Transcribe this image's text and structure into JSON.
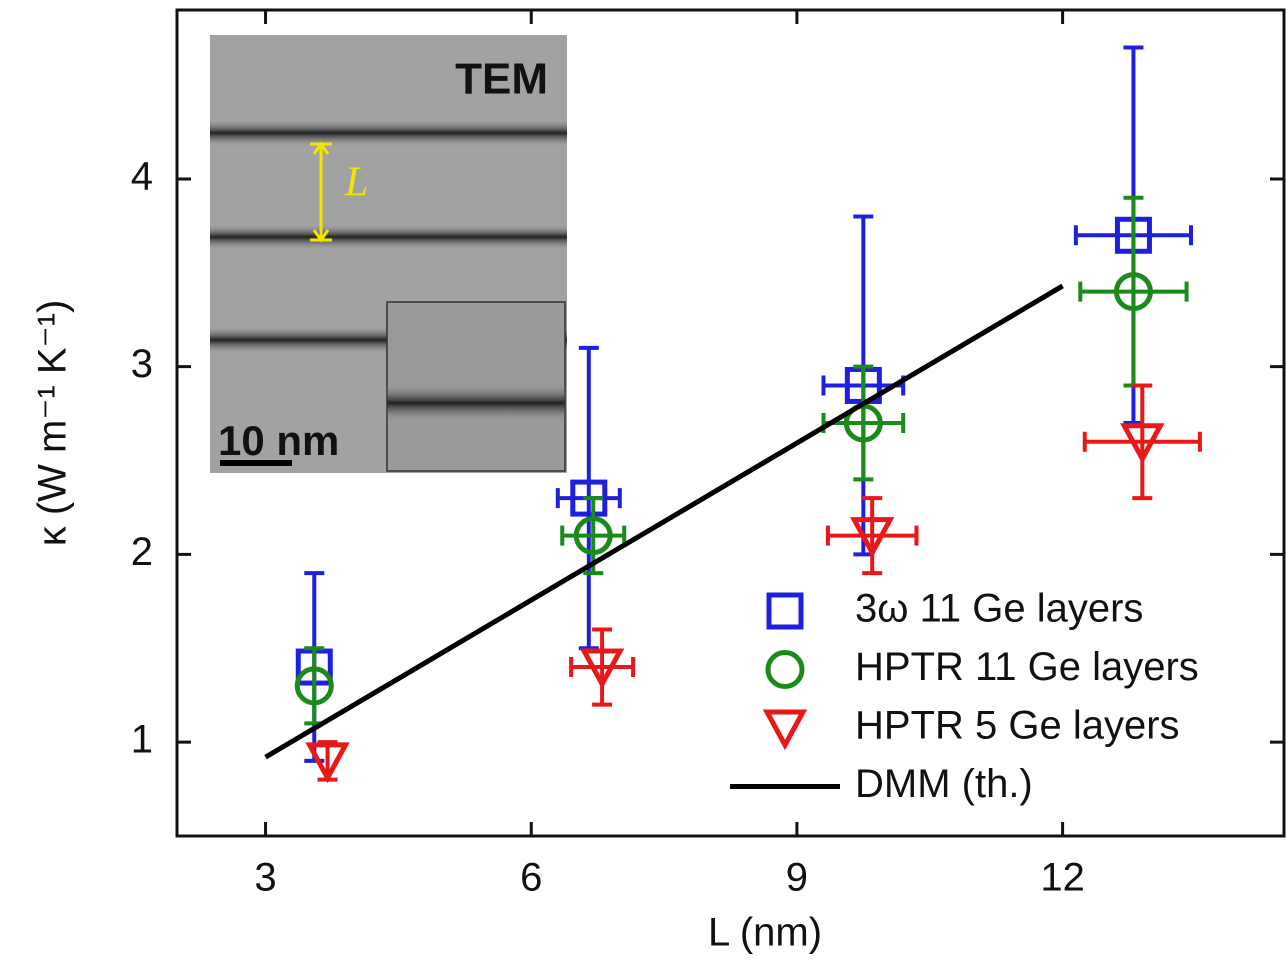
{
  "chart_data": {
    "type": "scatter",
    "x_label": "L (nm)",
    "y_label": "κ (W m⁻¹ K⁻¹)",
    "annotations": [
      "TEM",
      "L",
      "10 nm"
    ],
    "xlim": [
      2,
      14.5
    ],
    "ylim": [
      0.5,
      4.9
    ],
    "xticks": [
      3,
      6,
      9,
      12
    ],
    "yticks": [
      1,
      2,
      3,
      4
    ],
    "series": [
      {
        "name": "3ω 11 Ge layers",
        "type": "scatter",
        "marker": "square",
        "color": "#1f1fe0",
        "x": [
          3.55,
          6.65,
          9.75,
          12.8
        ],
        "values": [
          1.4,
          2.3,
          2.9,
          3.7
        ],
        "yerr": [
          0.5,
          0.8,
          0.9,
          1.0
        ],
        "xerr": [
          null,
          0.35,
          0.45,
          0.65
        ]
      },
      {
        "name": "HPTR 11 Ge layers",
        "type": "scatter",
        "marker": "circle",
        "color": "#1a8a1a",
        "x": [
          3.55,
          6.7,
          9.75,
          12.8
        ],
        "values": [
          1.3,
          2.1,
          2.7,
          3.4
        ],
        "yerr": [
          0.2,
          0.2,
          0.3,
          0.5
        ],
        "xerr": [
          null,
          0.35,
          0.45,
          0.6
        ]
      },
      {
        "name": "HPTR 5 Ge layers",
        "type": "scatter",
        "marker": "triangle-down",
        "color": "#e81818",
        "x": [
          3.7,
          6.8,
          9.85,
          12.9
        ],
        "values": [
          0.9,
          1.4,
          2.1,
          2.6
        ],
        "yerr": [
          0.1,
          0.2,
          0.2,
          0.3
        ],
        "xerr": [
          null,
          0.35,
          0.5,
          0.65
        ]
      },
      {
        "name": "DMM (th.)",
        "type": "line",
        "color": "#000000",
        "x": [
          3,
          12
        ],
        "values": [
          0.92,
          3.43
        ]
      }
    ]
  }
}
